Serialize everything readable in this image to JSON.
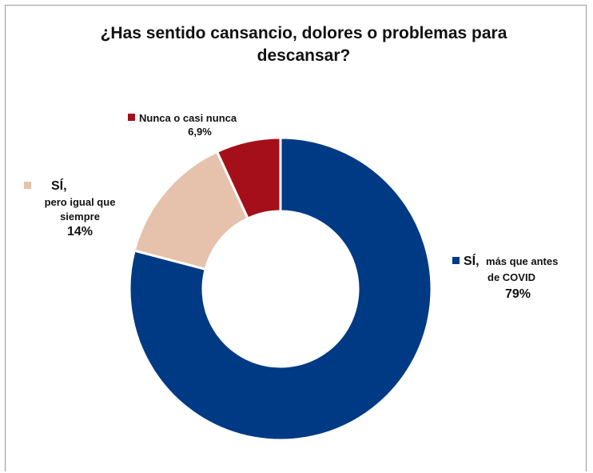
{
  "chart_data": {
    "type": "donut",
    "title_line1": "¿Has sentido cansancio, dolores o problemas para",
    "title_line2": "descansar?",
    "slices": [
      {
        "label_main": "SÍ,",
        "label_sub1": "más que antes",
        "label_sub2": "de COVID",
        "value": 79,
        "value_label": "79%",
        "color": "#003a84"
      },
      {
        "label_main": "SÍ,",
        "label_sub1": "pero igual que",
        "label_sub2": "siempre",
        "value": 14,
        "value_label": "14%",
        "color": "#e6c1ab"
      },
      {
        "label_main": "Nunca o casi nunca",
        "value": 6.9,
        "value_label": "6,9%",
        "color": "#a50f1a"
      }
    ]
  }
}
